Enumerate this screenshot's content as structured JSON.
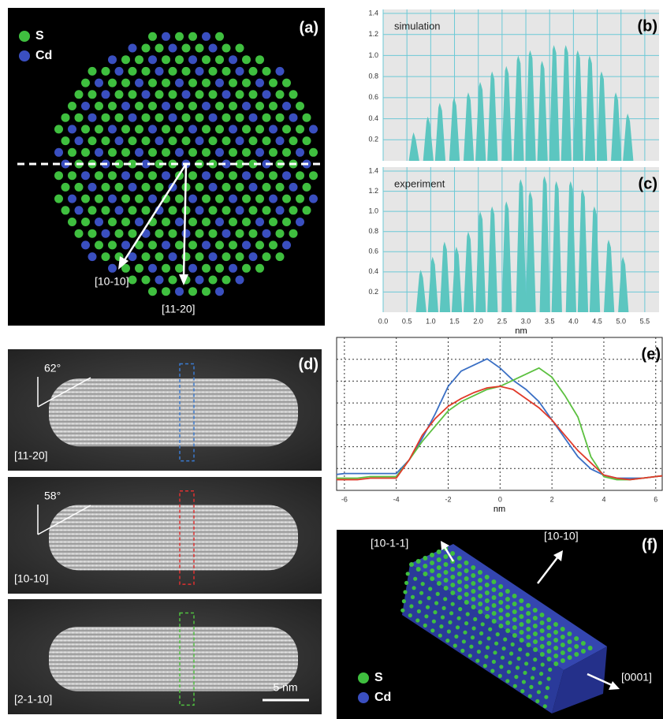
{
  "figure": {
    "a": {
      "label": "(a)",
      "legend": [
        {
          "name": "S",
          "color": "#3fbf3f"
        },
        {
          "name": "Cd",
          "color": "#3a4fc0"
        }
      ],
      "directions": [
        "[10-10]",
        "[11-20]"
      ]
    },
    "d": {
      "label": "(d)",
      "images": [
        {
          "direction": "[11-20]",
          "angle": "62°",
          "box_color": "#3a7ad0"
        },
        {
          "direction": "[10-10]",
          "angle": "58°",
          "box_color": "#e03030"
        },
        {
          "direction": "[2-1-10]",
          "box_color": "#50c040"
        }
      ],
      "scale_bar": "5 nm"
    },
    "f": {
      "label": "(f)",
      "legend": [
        {
          "name": "S",
          "color": "#3fbf3f"
        },
        {
          "name": "Cd",
          "color": "#3a4fc0"
        }
      ],
      "directions": [
        "[10-1-1]",
        "[10-10]",
        "[0001]"
      ]
    }
  },
  "chart_data": [
    {
      "type": "area",
      "panel_label": "(b)",
      "annotation": "simulation",
      "color": "#5cc6c0",
      "x": [
        0.65,
        0.95,
        1.2,
        1.5,
        1.8,
        2.05,
        2.3,
        2.6,
        2.85,
        3.1,
        3.35,
        3.6,
        3.85,
        4.1,
        4.35,
        4.6,
        4.9,
        5.15
      ],
      "values": [
        0.27,
        0.42,
        0.55,
        0.6,
        0.65,
        0.75,
        0.85,
        0.9,
        1.0,
        1.05,
        0.95,
        1.1,
        1.1,
        1.05,
        1.0,
        0.85,
        0.65,
        0.45
      ],
      "xlim": [
        0,
        5.8
      ],
      "ylim": [
        0,
        1.4
      ],
      "yticks": [
        0.2,
        0.4,
        0.6,
        0.8,
        {
          "value": 1,
          "label": "1.0"
        },
        1.2,
        1.4
      ],
      "grid": true
    },
    {
      "type": "area",
      "panel_label": "(c)",
      "annotation": "experiment",
      "color": "#5cc6c0",
      "xlabel": "nm",
      "x": [
        0.8,
        1.05,
        1.3,
        1.55,
        1.8,
        2.05,
        2.3,
        2.6,
        2.9,
        3.1,
        3.4,
        3.65,
        3.95,
        4.2,
        4.45,
        4.75,
        5.05
      ],
      "values": [
        0.42,
        0.55,
        0.7,
        0.65,
        0.8,
        1.0,
        1.05,
        1.1,
        1.32,
        1.2,
        1.35,
        1.3,
        1.3,
        1.22,
        1.05,
        0.72,
        0.55
      ],
      "xlim": [
        0,
        5.8
      ],
      "ylim": [
        0,
        1.4
      ],
      "xticks": [
        {
          "value": 0,
          "label": "0.0"
        },
        0.5,
        {
          "value": 1,
          "label": "1.0"
        },
        1.5,
        {
          "value": 2,
          "label": "2.0"
        },
        2.5,
        {
          "value": 3,
          "label": "3.0"
        },
        3.5,
        {
          "value": 4,
          "label": "4.0"
        },
        4.5,
        {
          "value": 5,
          "label": "5.0"
        },
        5.5
      ],
      "yticks": [
        0.2,
        0.4,
        0.6,
        0.8,
        {
          "value": 1,
          "label": "1.0"
        },
        1.2,
        1.4
      ],
      "grid": true
    },
    {
      "type": "line",
      "panel_label": "(e)",
      "xlabel": "nm",
      "x": [
        -6.5,
        -6,
        -5.5,
        -5,
        -4.5,
        -4,
        -3.5,
        -3,
        -2.5,
        -2,
        -1.5,
        -1,
        -0.5,
        0,
        0.5,
        1,
        1.5,
        2,
        2.5,
        3,
        3.5,
        4,
        4.5,
        5,
        5.5,
        6,
        6.5
      ],
      "series": [
        {
          "color": "#3a6fc4",
          "values": [
            0.1,
            0.11,
            0.11,
            0.11,
            0.11,
            0.11,
            0.2,
            0.34,
            0.5,
            0.68,
            0.78,
            0.82,
            0.86,
            0.8,
            0.72,
            0.66,
            0.58,
            0.46,
            0.34,
            0.22,
            0.14,
            0.1,
            0.08,
            0.08,
            0.08,
            0.09,
            0.1
          ]
        },
        {
          "color": "#5cc040",
          "values": [
            0.08,
            0.08,
            0.08,
            0.09,
            0.09,
            0.09,
            0.2,
            0.32,
            0.42,
            0.52,
            0.58,
            0.62,
            0.66,
            0.68,
            0.72,
            0.76,
            0.8,
            0.74,
            0.62,
            0.48,
            0.22,
            0.09,
            0.07,
            0.07,
            0.08,
            0.09,
            0.1
          ]
        },
        {
          "color": "#e03a2a",
          "values": [
            0.07,
            0.07,
            0.07,
            0.08,
            0.08,
            0.08,
            0.2,
            0.36,
            0.47,
            0.55,
            0.6,
            0.64,
            0.67,
            0.68,
            0.66,
            0.6,
            0.54,
            0.46,
            0.36,
            0.26,
            0.18,
            0.1,
            0.08,
            0.07,
            0.08,
            0.09,
            0.1
          ]
        }
      ],
      "xlim": [
        -6.3,
        6.25
      ],
      "ylim": [
        0,
        1
      ],
      "xticks": [
        -6,
        -4,
        -2,
        0,
        2,
        4,
        6
      ],
      "grid": true
    }
  ]
}
